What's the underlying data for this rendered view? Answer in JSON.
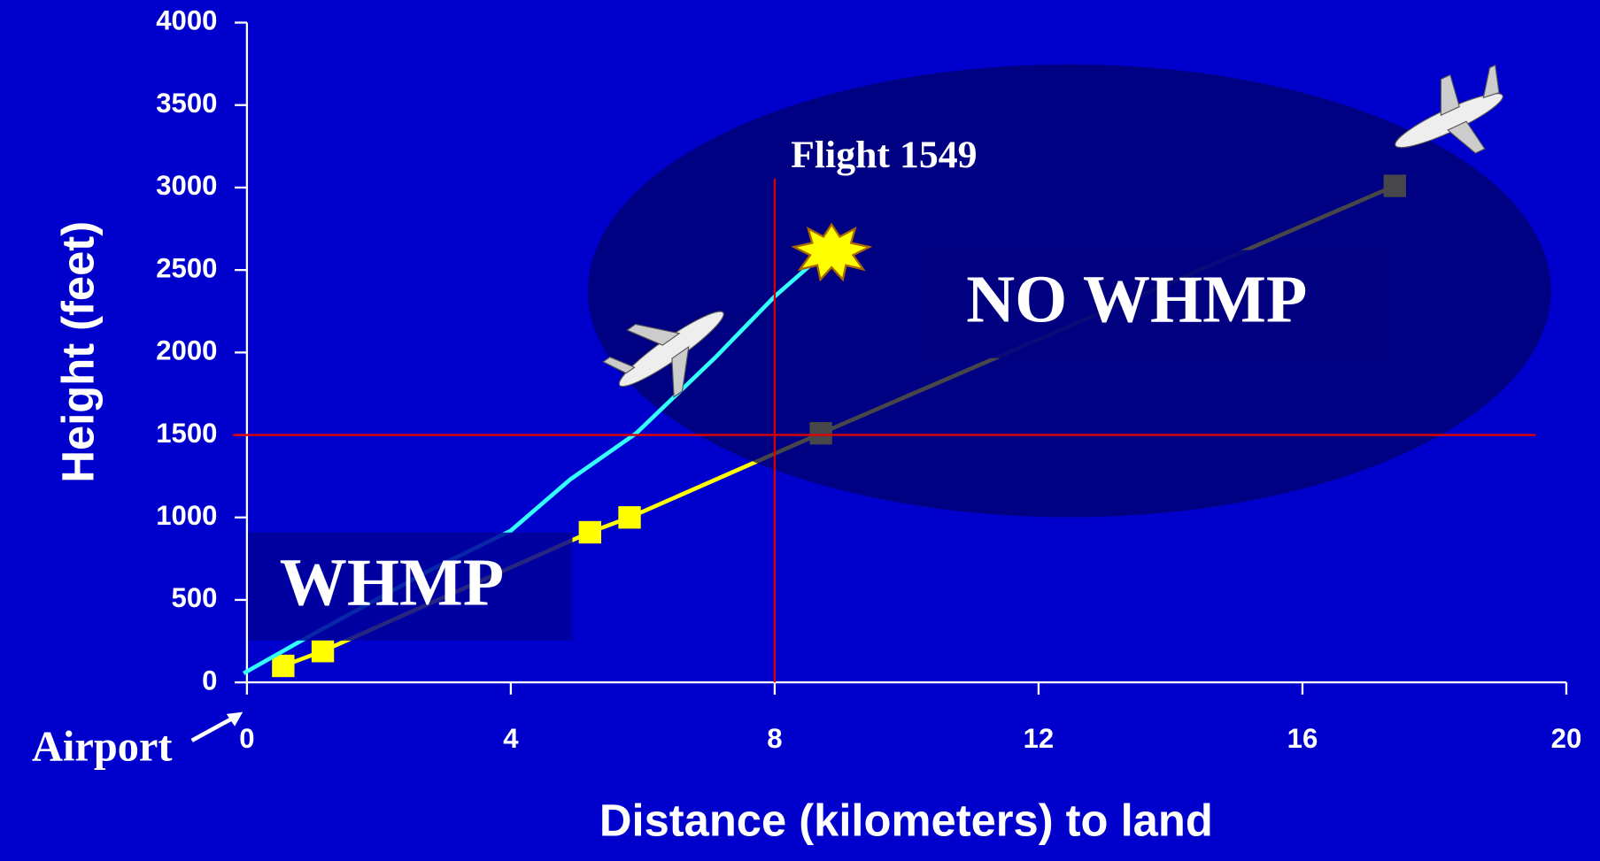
{
  "chart_data": {
    "type": "line",
    "xlabel": "Distance (kilometers) to land",
    "ylabel": "Height (feet)",
    "xlim": [
      0,
      20
    ],
    "xticks": [
      0,
      4,
      8,
      12,
      16,
      20
    ],
    "ylim": [
      0,
      4000
    ],
    "yticks": [
      0,
      500,
      1000,
      1500,
      2000,
      2500,
      3000,
      3500,
      4000
    ],
    "series": [
      {
        "color": "#ffff00",
        "markers": true,
        "x": [
          0.55,
          1.15,
          5.2,
          5.8,
          8.7,
          17.4
        ],
        "values": [
          100,
          190,
          910,
          1000,
          1510,
          3010
        ]
      },
      {
        "color": "#33ffff",
        "markers": false,
        "x": [
          -0.05,
          0.9,
          2.75,
          4,
          4.9,
          5.9,
          7.1,
          8,
          8.8
        ],
        "values": [
          55,
          270,
          675,
          920,
          1230,
          1510,
          1970,
          2340,
          2620
        ]
      }
    ],
    "reference_lines": {
      "x": 8,
      "y": 1500,
      "color": "#dd0000"
    },
    "annotations": {
      "flight": "Flight 1549",
      "no_whmp": "NO WHMP",
      "whmp": "WHMP",
      "airport": "Airport"
    }
  }
}
